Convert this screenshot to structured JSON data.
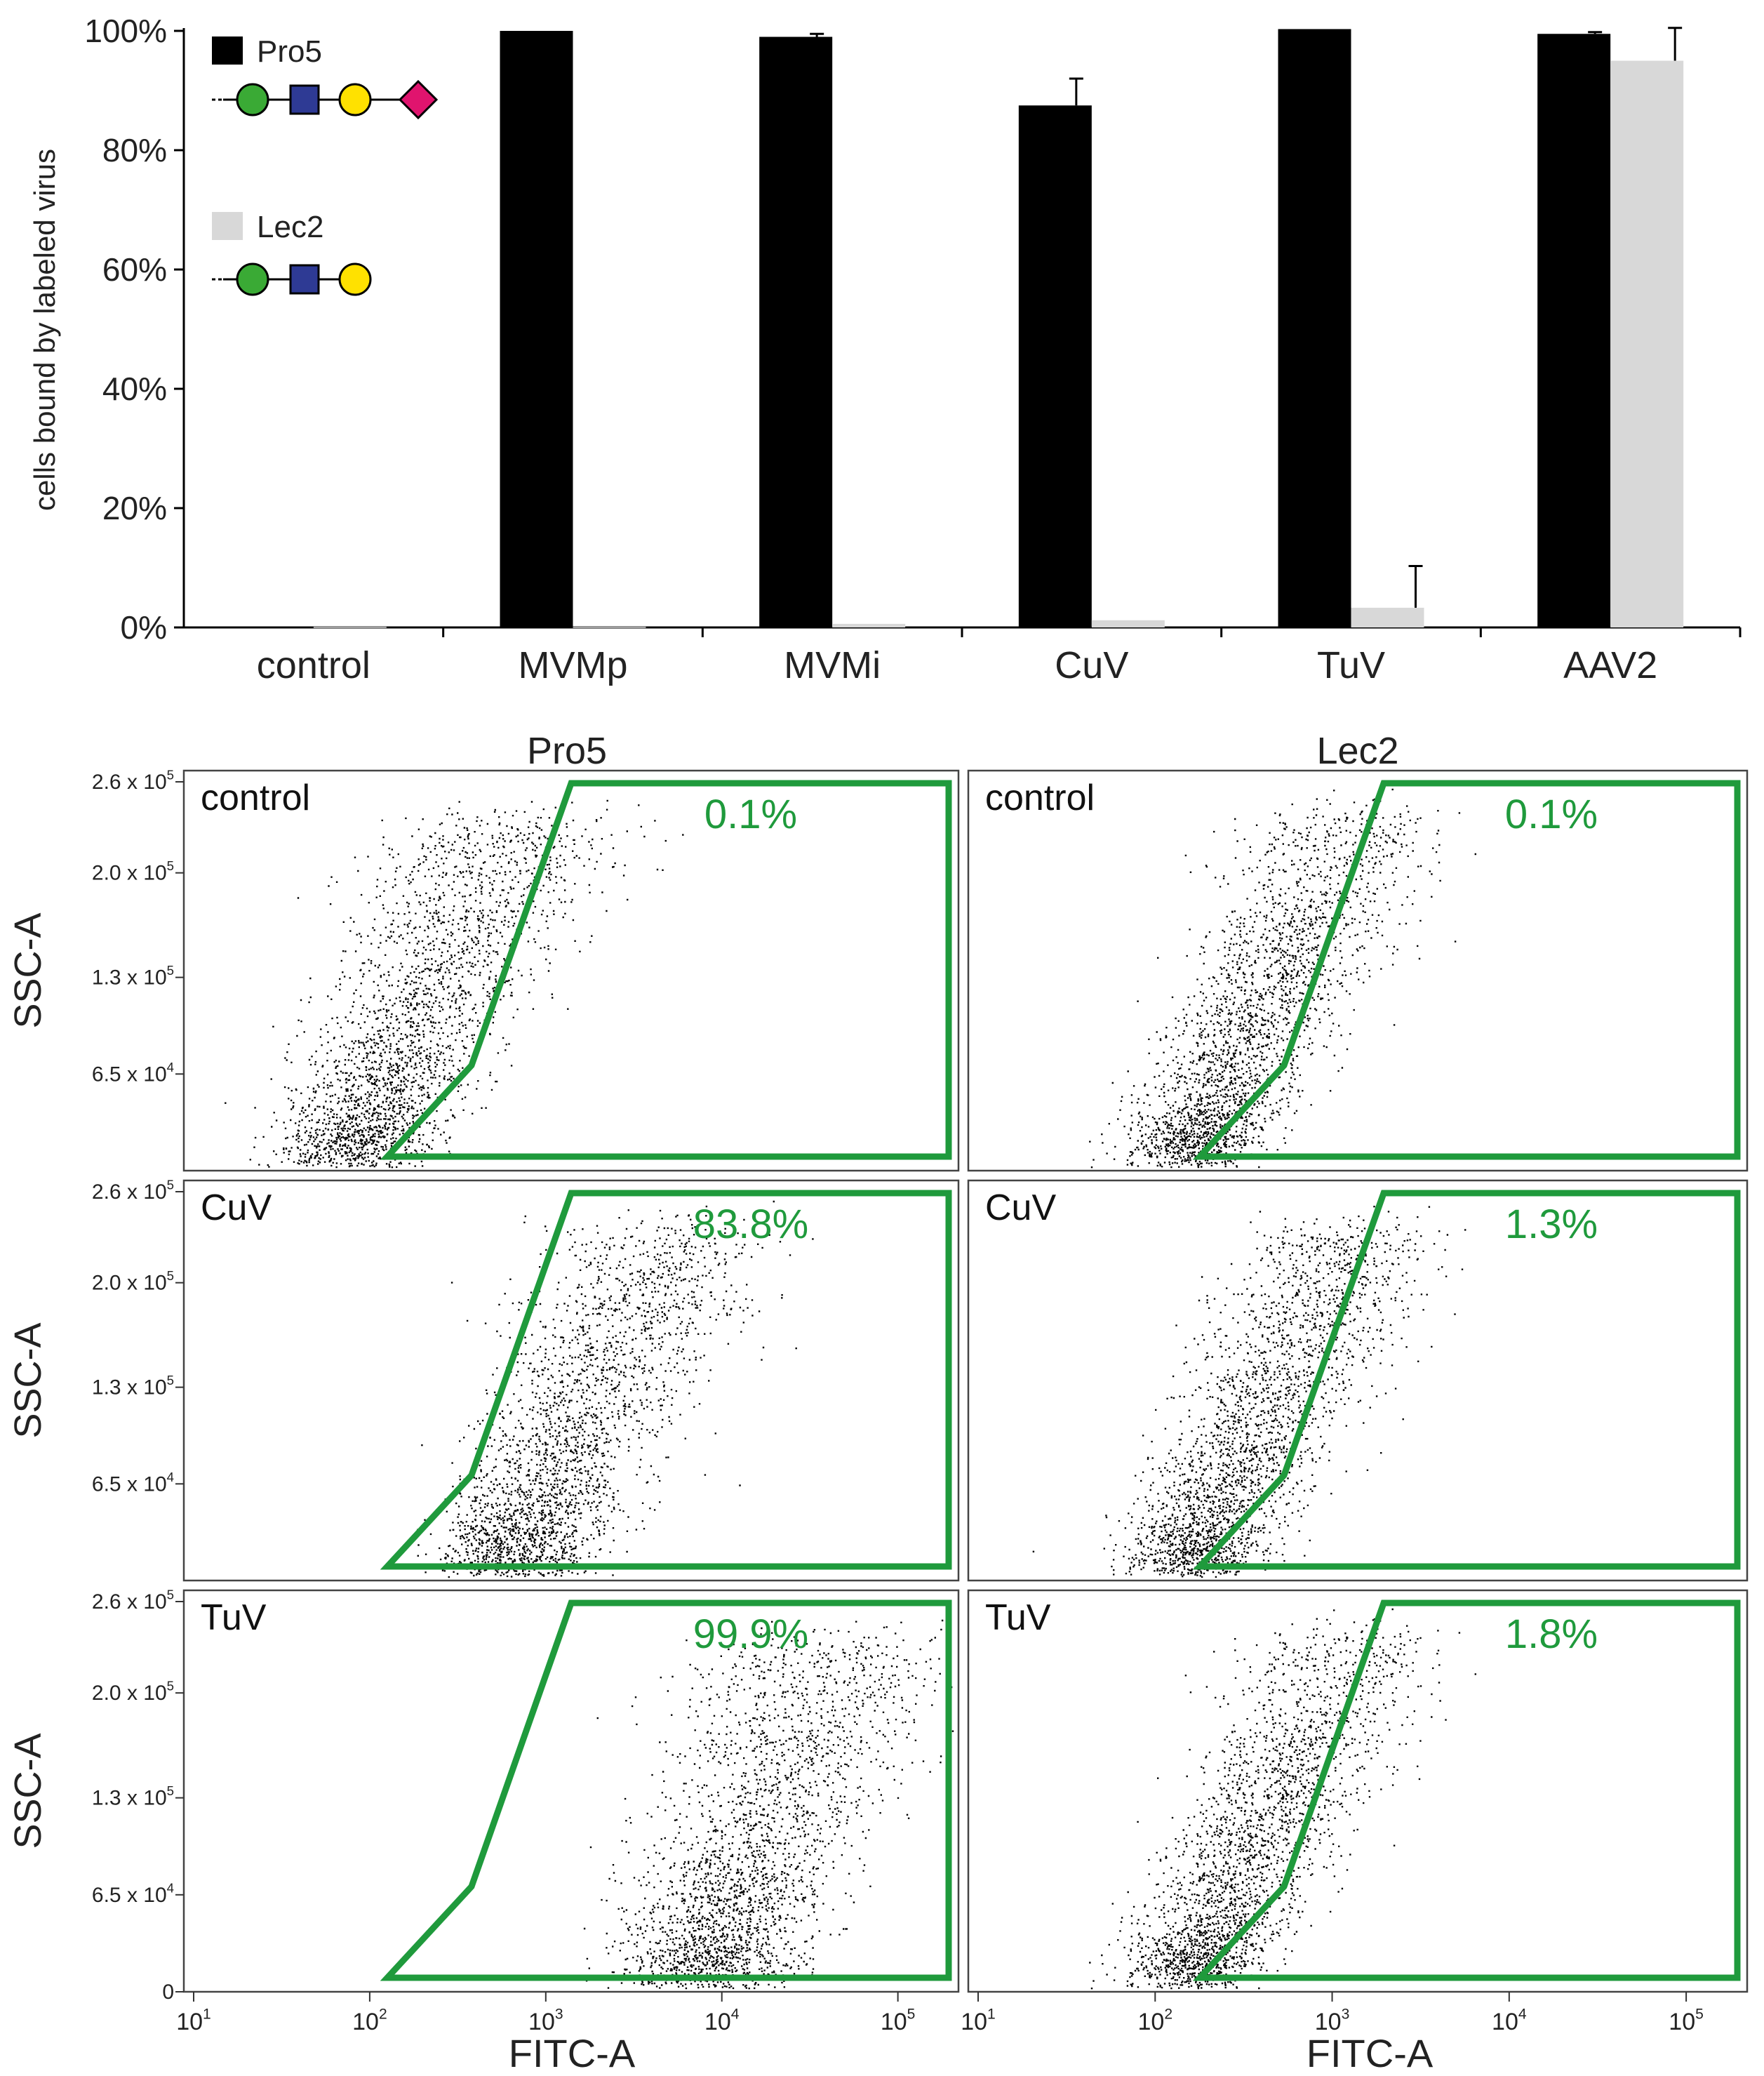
{
  "chart_data": [
    {
      "type": "bar",
      "ylabel": "cells bound by labeled virus",
      "ylim": [
        0,
        100
      ],
      "yticks": [
        "0%",
        "20%",
        "40%",
        "60%",
        "80%",
        "100%"
      ],
      "categories": [
        "control",
        "MVMp",
        "MVMi",
        "CuV",
        "TuV",
        "AAV2"
      ],
      "series": [
        {
          "name": "Pro5",
          "color": "#000000",
          "values": [
            0.1,
            100,
            99,
            87.5,
            100.3,
            99.5
          ],
          "errors": [
            0,
            0,
            0.5,
            4.5,
            0,
            0.3
          ]
        },
        {
          "name": "Lec2",
          "color": "#d8d8d8",
          "values": [
            0.1,
            0.1,
            0.6,
            1.2,
            3.3,
            95
          ],
          "errors": [
            0,
            0,
            0,
            0,
            7,
            5.5
          ]
        }
      ],
      "legend": [
        {
          "label": "Pro5",
          "glycan": [
            "circle-green",
            "square-blue",
            "circle-yellow",
            "diamond-magenta"
          ]
        },
        {
          "label": "Lec2",
          "glycan": [
            "circle-green",
            "square-blue",
            "circle-yellow"
          ]
        }
      ],
      "glycan_colors": {
        "green": "#3aaa35",
        "blue": "#2e3a94",
        "yellow": "#ffe100",
        "magenta": "#e0146e"
      }
    },
    {
      "type": "scatter",
      "column_titles": [
        "Pro5",
        "Lec2"
      ],
      "xlabel": "FITC-A",
      "ylabel": "SSC-A",
      "x_ticks": [
        "10^1",
        "10^2",
        "10^3",
        "10^4",
        "10^5"
      ],
      "y_ticks": [
        "0",
        "6.5 x 10^4",
        "1.3 x 10^5",
        "2.0 x 10^5",
        "2.6 x 10^5"
      ],
      "gate_color": "#1f9a3c",
      "panels": [
        {
          "row": 0,
          "col": 0,
          "label": "control",
          "gate_percent": "0.1%",
          "cloud": {
            "center_log_fitc": 1.9,
            "spread": 0.35
          }
        },
        {
          "row": 0,
          "col": 1,
          "label": "control",
          "gate_percent": "0.1%",
          "cloud": {
            "center_log_fitc": 2.2,
            "spread": 0.3
          }
        },
        {
          "row": 1,
          "col": 0,
          "label": "CuV",
          "gate_percent": "83.8%",
          "cloud": {
            "center_log_fitc": 2.8,
            "spread": 0.35
          }
        },
        {
          "row": 1,
          "col": 1,
          "label": "CuV",
          "gate_percent": "1.3%",
          "cloud": {
            "center_log_fitc": 2.2,
            "spread": 0.3
          }
        },
        {
          "row": 2,
          "col": 0,
          "label": "TuV",
          "gate_percent": "99.9%",
          "cloud": {
            "center_log_fitc": 3.9,
            "spread": 0.4
          }
        },
        {
          "row": 2,
          "col": 1,
          "label": "TuV",
          "gate_percent": "1.8%",
          "cloud": {
            "center_log_fitc": 2.2,
            "spread": 0.3
          }
        }
      ]
    }
  ]
}
